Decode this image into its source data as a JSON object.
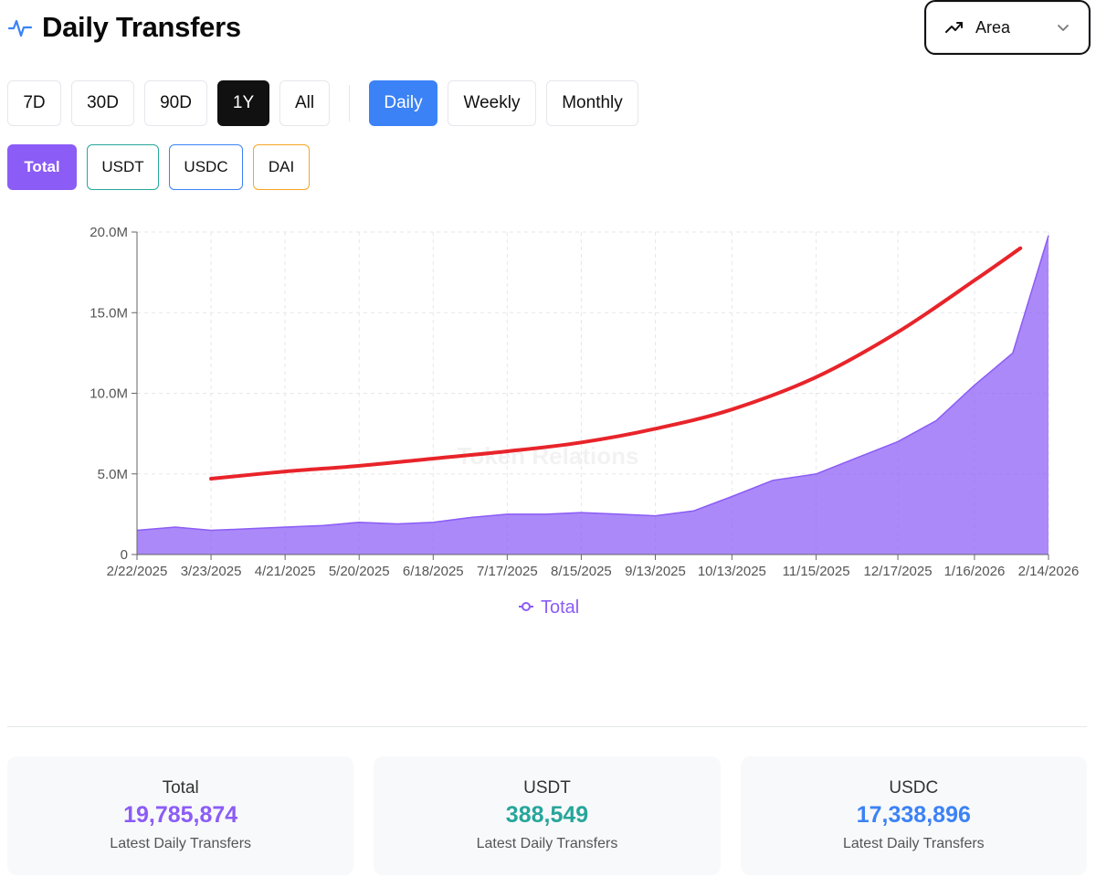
{
  "header": {
    "title": "Daily Transfers",
    "chart_type": {
      "value": "Area"
    }
  },
  "range_buttons": [
    {
      "label": "7D",
      "active": false
    },
    {
      "label": "30D",
      "active": false
    },
    {
      "label": "90D",
      "active": false
    },
    {
      "label": "1Y",
      "active": true
    },
    {
      "label": "All",
      "active": false
    }
  ],
  "interval_buttons": [
    {
      "label": "Daily",
      "active": true
    },
    {
      "label": "Weekly",
      "active": false
    },
    {
      "label": "Monthly",
      "active": false
    }
  ],
  "series_buttons": [
    {
      "label": "Total",
      "active": true,
      "color": "#8b5cf6"
    },
    {
      "label": "USDT",
      "active": false,
      "color": "#26a69a"
    },
    {
      "label": "USDC",
      "active": false,
      "color": "#3b82f6"
    },
    {
      "label": "DAI",
      "active": false,
      "color": "#f5a623"
    }
  ],
  "chart_data": {
    "type": "area",
    "watermark": "Token Relations",
    "x_ticks": [
      "2/22/2025",
      "3/23/2025",
      "4/21/2025",
      "5/20/2025",
      "6/18/2025",
      "7/17/2025",
      "8/15/2025",
      "9/13/2025",
      "10/13/2025",
      "11/15/2025",
      "12/17/2025",
      "1/16/2026",
      "2/14/2026"
    ],
    "y_ticks": [
      "0",
      "5.0M",
      "10.0M",
      "15.0M",
      "20.0M"
    ],
    "ylim": [
      0,
      20000000
    ],
    "grid": true,
    "legend": {
      "position": "bottom",
      "entries": [
        "Total"
      ]
    },
    "series": [
      {
        "name": "Total",
        "color": "#8b5cf6",
        "x": [
          "2/22/2025",
          "3/9/2025",
          "3/23/2025",
          "4/7/2025",
          "4/21/2025",
          "5/6/2025",
          "5/20/2025",
          "6/4/2025",
          "6/18/2025",
          "7/3/2025",
          "7/17/2025",
          "8/1/2025",
          "8/15/2025",
          "8/30/2025",
          "9/13/2025",
          "9/28/2025",
          "10/13/2025",
          "10/29/2025",
          "11/15/2025",
          "12/1/2025",
          "12/17/2025",
          "1/1/2026",
          "1/16/2026",
          "1/31/2026",
          "2/14/2026"
        ],
        "values": [
          1500000,
          1700000,
          1500000,
          1600000,
          1700000,
          1800000,
          2000000,
          1900000,
          2000000,
          2300000,
          2500000,
          2500000,
          2600000,
          2500000,
          2400000,
          2700000,
          3600000,
          4600000,
          5000000,
          6000000,
          7000000,
          8300000,
          10500000,
          12500000,
          19785874
        ]
      }
    ],
    "trendline": {
      "color": "#e8242a",
      "x": [
        "3/23/2025",
        "4/21/2025",
        "5/20/2025",
        "6/18/2025",
        "7/17/2025",
        "8/15/2025",
        "9/13/2025",
        "10/13/2025",
        "11/15/2025",
        "12/17/2025",
        "1/16/2026",
        "2/3/2026"
      ],
      "values": [
        4700000,
        5150000,
        5500000,
        5950000,
        6400000,
        6950000,
        7800000,
        9000000,
        11000000,
        13800000,
        17000000,
        19000000
      ]
    }
  },
  "stats": [
    {
      "label": "Total",
      "value": "19,785,874",
      "sub": "Latest Daily Transfers",
      "color": "#8b5cf6"
    },
    {
      "label": "USDT",
      "value": "388,549",
      "sub": "Latest Daily Transfers",
      "color": "#26a69a"
    },
    {
      "label": "USDC",
      "value": "17,338,896",
      "sub": "Latest Daily Transfers",
      "color": "#3b82f6"
    }
  ]
}
